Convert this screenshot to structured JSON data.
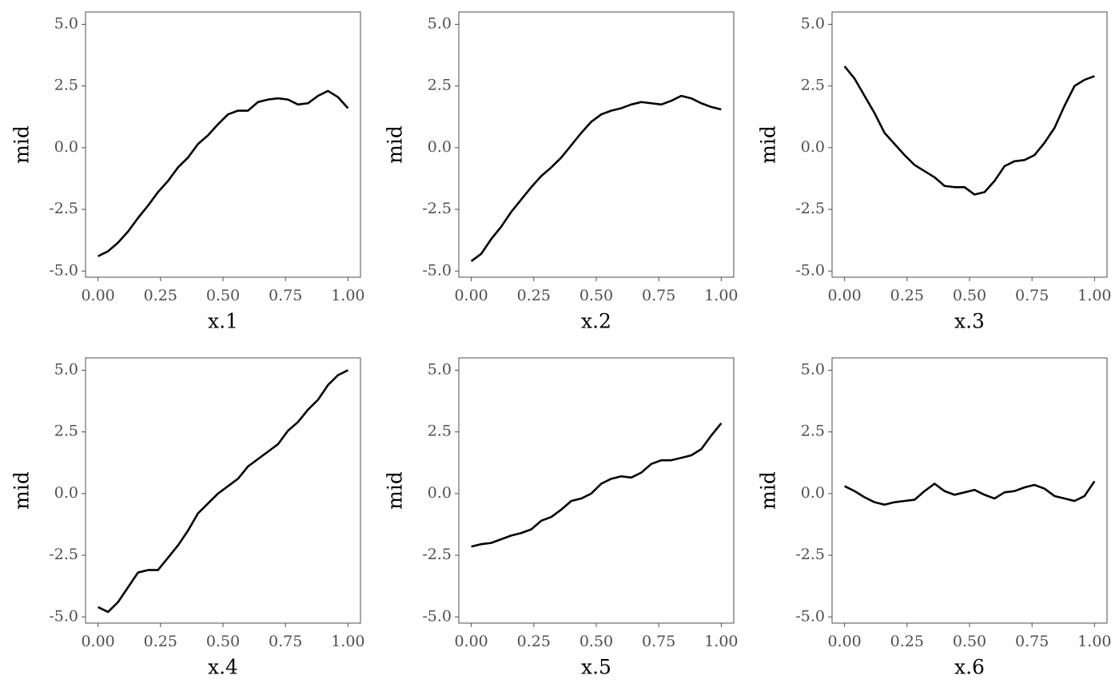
{
  "chart_data": [
    {
      "type": "line",
      "xlabel": "x.1",
      "ylabel": "mid",
      "color": "#000000",
      "x": [
        0,
        0.04,
        0.08,
        0.12,
        0.16,
        0.2,
        0.24,
        0.28,
        0.32,
        0.36,
        0.4,
        0.44,
        0.48,
        0.52,
        0.56,
        0.6,
        0.64,
        0.68,
        0.72,
        0.76,
        0.8,
        0.84,
        0.88,
        0.92,
        0.96,
        1
      ],
      "values": [
        -4.4,
        -4.2,
        -3.85,
        -3.4,
        -2.85,
        -2.35,
        -1.8,
        -1.35,
        -0.8,
        -0.4,
        0.15,
        0.5,
        0.95,
        1.35,
        1.5,
        1.5,
        1.85,
        1.95,
        2.0,
        1.95,
        1.75,
        1.8,
        2.1,
        2.3,
        2.05,
        1.6
      ],
      "xlim": [
        -0.05,
        1.05
      ],
      "ylim": [
        -5.25,
        5.5
      ],
      "xticks": [
        {
          "value": 0,
          "label": "0.00"
        },
        {
          "value": 0.25,
          "label": "0.25"
        },
        {
          "value": 0.5,
          "label": "0.50"
        },
        {
          "value": 0.75,
          "label": "0.75"
        },
        {
          "value": 1,
          "label": "1.00"
        }
      ],
      "yticks": [
        {
          "value": -5,
          "label": "-5.0"
        },
        -2.5,
        {
          "value": 0,
          "label": "0.0"
        },
        2.5,
        {
          "value": 5,
          "label": "5.0"
        }
      ]
    },
    {
      "type": "line",
      "xlabel": "x.2",
      "ylabel": "mid",
      "color": "#000000",
      "x": [
        0,
        0.04,
        0.08,
        0.12,
        0.16,
        0.2,
        0.24,
        0.28,
        0.32,
        0.36,
        0.4,
        0.44,
        0.48,
        0.52,
        0.56,
        0.6,
        0.64,
        0.68,
        0.72,
        0.76,
        0.8,
        0.84,
        0.88,
        0.92,
        0.96,
        1
      ],
      "values": [
        -4.6,
        -4.3,
        -3.7,
        -3.2,
        -2.6,
        -2.1,
        -1.6,
        -1.15,
        -0.8,
        -0.4,
        0.1,
        0.6,
        1.05,
        1.35,
        1.5,
        1.6,
        1.75,
        1.85,
        1.8,
        1.75,
        1.9,
        2.1,
        2.0,
        1.8,
        1.65,
        1.55
      ],
      "xlim": [
        -0.05,
        1.05
      ],
      "ylim": [
        -5.25,
        5.5
      ],
      "xticks": [
        {
          "value": 0,
          "label": "0.00"
        },
        {
          "value": 0.25,
          "label": "0.25"
        },
        {
          "value": 0.5,
          "label": "0.50"
        },
        {
          "value": 0.75,
          "label": "0.75"
        },
        {
          "value": 1,
          "label": "1.00"
        }
      ],
      "yticks": [
        {
          "value": -5,
          "label": "-5.0"
        },
        -2.5,
        {
          "value": 0,
          "label": "0.0"
        },
        2.5,
        {
          "value": 5,
          "label": "5.0"
        }
      ]
    },
    {
      "type": "line",
      "xlabel": "x.3",
      "ylabel": "mid",
      "color": "#000000",
      "x": [
        0,
        0.04,
        0.08,
        0.12,
        0.16,
        0.2,
        0.24,
        0.28,
        0.32,
        0.36,
        0.4,
        0.44,
        0.48,
        0.52,
        0.56,
        0.6,
        0.64,
        0.68,
        0.72,
        0.76,
        0.8,
        0.84,
        0.88,
        0.92,
        0.96,
        1
      ],
      "values": [
        3.3,
        2.8,
        2.1,
        1.4,
        0.6,
        0.15,
        -0.3,
        -0.7,
        -0.95,
        -1.2,
        -1.55,
        -1.6,
        -1.6,
        -1.9,
        -1.8,
        -1.35,
        -0.75,
        -0.55,
        -0.5,
        -0.3,
        0.2,
        0.8,
        1.7,
        2.5,
        2.75,
        2.9
      ],
      "xlim": [
        -0.05,
        1.05
      ],
      "ylim": [
        -5.25,
        5.5
      ],
      "xticks": [
        {
          "value": 0,
          "label": "0.00"
        },
        {
          "value": 0.25,
          "label": "0.25"
        },
        {
          "value": 0.5,
          "label": "0.50"
        },
        {
          "value": 0.75,
          "label": "0.75"
        },
        {
          "value": 1,
          "label": "1.00"
        }
      ],
      "yticks": [
        {
          "value": -5,
          "label": "-5.0"
        },
        -2.5,
        {
          "value": 0,
          "label": "0.0"
        },
        2.5,
        {
          "value": 5,
          "label": "5.0"
        }
      ]
    },
    {
      "type": "line",
      "xlabel": "x.4",
      "ylabel": "mid",
      "color": "#000000",
      "x": [
        0,
        0.04,
        0.08,
        0.12,
        0.16,
        0.2,
        0.24,
        0.28,
        0.32,
        0.36,
        0.4,
        0.44,
        0.48,
        0.52,
        0.56,
        0.6,
        0.64,
        0.68,
        0.72,
        0.76,
        0.8,
        0.84,
        0.88,
        0.92,
        0.96,
        1
      ],
      "values": [
        -4.6,
        -4.8,
        -4.4,
        -3.8,
        -3.2,
        -3.1,
        -3.1,
        -2.6,
        -2.1,
        -1.5,
        -0.8,
        -0.4,
        0.0,
        0.3,
        0.6,
        1.1,
        1.4,
        1.7,
        2.0,
        2.55,
        2.9,
        3.4,
        3.8,
        4.4,
        4.8,
        5.0
      ],
      "xlim": [
        -0.05,
        1.05
      ],
      "ylim": [
        -5.25,
        5.5
      ],
      "xticks": [
        {
          "value": 0,
          "label": "0.00"
        },
        {
          "value": 0.25,
          "label": "0.25"
        },
        {
          "value": 0.5,
          "label": "0.50"
        },
        {
          "value": 0.75,
          "label": "0.75"
        },
        {
          "value": 1,
          "label": "1.00"
        }
      ],
      "yticks": [
        {
          "value": -5,
          "label": "-5.0"
        },
        -2.5,
        {
          "value": 0,
          "label": "0.0"
        },
        2.5,
        {
          "value": 5,
          "label": "5.0"
        }
      ]
    },
    {
      "type": "line",
      "xlabel": "x.5",
      "ylabel": "mid",
      "color": "#000000",
      "x": [
        0,
        0.04,
        0.08,
        0.12,
        0.16,
        0.2,
        0.24,
        0.28,
        0.32,
        0.36,
        0.4,
        0.44,
        0.48,
        0.52,
        0.56,
        0.6,
        0.64,
        0.68,
        0.72,
        0.76,
        0.8,
        0.84,
        0.88,
        0.92,
        0.96,
        1
      ],
      "values": [
        -2.15,
        -2.05,
        -2.0,
        -1.85,
        -1.7,
        -1.6,
        -1.45,
        -1.1,
        -0.95,
        -0.65,
        -0.3,
        -0.2,
        0.0,
        0.4,
        0.6,
        0.7,
        0.65,
        0.85,
        1.2,
        1.35,
        1.35,
        1.45,
        1.55,
        1.8,
        2.35,
        2.85
      ],
      "xlim": [
        -0.05,
        1.05
      ],
      "ylim": [
        -5.25,
        5.5
      ],
      "xticks": [
        {
          "value": 0,
          "label": "0.00"
        },
        {
          "value": 0.25,
          "label": "0.25"
        },
        {
          "value": 0.5,
          "label": "0.50"
        },
        {
          "value": 0.75,
          "label": "0.75"
        },
        {
          "value": 1,
          "label": "1.00"
        }
      ],
      "yticks": [
        {
          "value": -5,
          "label": "-5.0"
        },
        -2.5,
        {
          "value": 0,
          "label": "0.0"
        },
        2.5,
        {
          "value": 5,
          "label": "5.0"
        }
      ]
    },
    {
      "type": "line",
      "xlabel": "x.6",
      "ylabel": "mid",
      "color": "#000000",
      "x": [
        0,
        0.04,
        0.08,
        0.12,
        0.16,
        0.2,
        0.24,
        0.28,
        0.32,
        0.36,
        0.4,
        0.44,
        0.48,
        0.52,
        0.56,
        0.6,
        0.64,
        0.68,
        0.72,
        0.76,
        0.8,
        0.84,
        0.88,
        0.92,
        0.96,
        1
      ],
      "values": [
        0.3,
        0.1,
        -0.15,
        -0.35,
        -0.45,
        -0.35,
        -0.3,
        -0.25,
        0.1,
        0.4,
        0.1,
        -0.05,
        0.05,
        0.15,
        -0.05,
        -0.2,
        0.05,
        0.1,
        0.25,
        0.35,
        0.2,
        -0.1,
        -0.2,
        -0.3,
        -0.1,
        0.5
      ],
      "xlim": [
        -0.05,
        1.05
      ],
      "ylim": [
        -5.25,
        5.5
      ],
      "xticks": [
        {
          "value": 0,
          "label": "0.00"
        },
        {
          "value": 0.25,
          "label": "0.25"
        },
        {
          "value": 0.5,
          "label": "0.50"
        },
        {
          "value": 0.75,
          "label": "0.75"
        },
        {
          "value": 1,
          "label": "1.00"
        }
      ],
      "yticks": [
        {
          "value": -5,
          "label": "-5.0"
        },
        -2.5,
        {
          "value": 0,
          "label": "0.0"
        },
        2.5,
        {
          "value": 5,
          "label": "5.0"
        }
      ]
    }
  ]
}
